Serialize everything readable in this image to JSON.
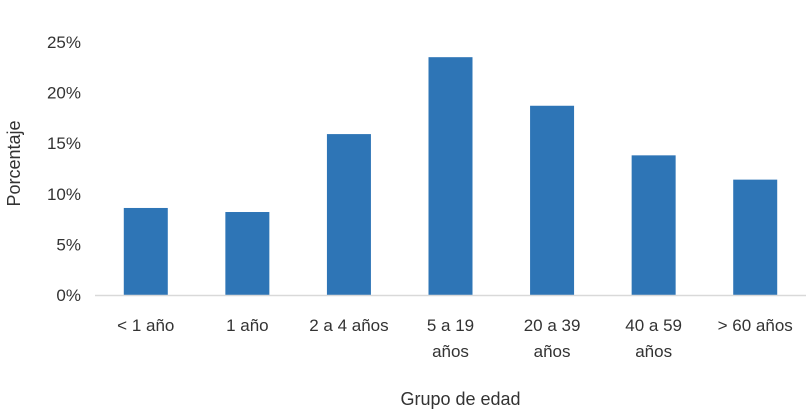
{
  "chart_data": {
    "type": "bar",
    "categories": [
      [
        "< 1 año"
      ],
      [
        "1 año"
      ],
      [
        "2 a 4 años"
      ],
      [
        "5 a 19",
        "años"
      ],
      [
        "20 a 39",
        "años"
      ],
      [
        "40 a 59",
        "años"
      ],
      [
        "> 60 años"
      ]
    ],
    "values": [
      8.6,
      8.2,
      15.9,
      23.5,
      18.7,
      13.8,
      11.4
    ],
    "xlabel": "Grupo de edad",
    "ylabel": "Porcentaje",
    "ylim": [
      0,
      25
    ],
    "yticks": [
      "0%",
      "5%",
      "10%",
      "15%",
      "20%",
      "25%"
    ],
    "grid": false,
    "bar_color": "#2E75B6",
    "axis_color": "#D9D9D9"
  }
}
